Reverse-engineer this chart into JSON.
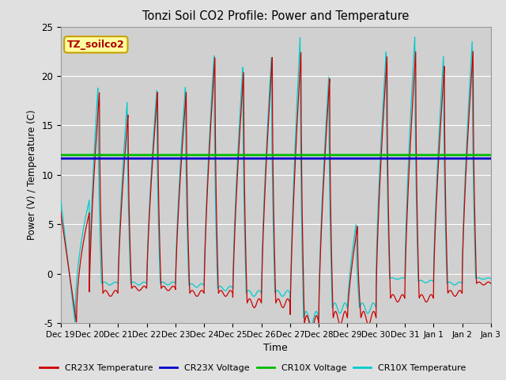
{
  "title": "Tonzi Soil CO2 Profile: Power and Temperature",
  "ylabel": "Power (V) / Temperature (C)",
  "xlabel": "Time",
  "ylim": [
    -5,
    25
  ],
  "num_days": 15,
  "cr23x_voltage_value": 11.65,
  "cr10x_voltage_value": 12.0,
  "fig_bg_color": "#e0e0e0",
  "plot_bg_color": "#d0d0d0",
  "annotation_text": "TZ_soilco2",
  "annotation_bg": "#ffffa0",
  "annotation_border": "#c8a000",
  "legend_labels": [
    "CR23X Temperature",
    "CR23X Voltage",
    "CR10X Voltage",
    "CR10X Temperature"
  ],
  "cr23x_temp_color": "#cc0000",
  "cr10x_temp_color": "#00cccc",
  "cr23x_volt_color": "#0000cc",
  "cr10x_volt_color": "#00bb00",
  "xtick_labels": [
    "Dec 19",
    "Dec 20",
    "Dec 21",
    "Dec 22",
    "Dec 23",
    "Dec 24",
    "Dec 25",
    "Dec 26",
    "Dec 27",
    "Dec 28",
    "Dec 29",
    "Dec 30",
    "Dec 31",
    "Jan 1",
    "Jan 2",
    "Jan 3"
  ],
  "yticks": [
    -5,
    0,
    5,
    10,
    15,
    20,
    25
  ],
  "grid_color": "#bbbbbb",
  "peak_heights_cr23x": [
    6.2,
    18.5,
    16.2,
    18.5,
    18.5,
    22.0,
    20.5,
    22.0,
    22.5,
    19.8,
    4.8,
    22.0,
    22.5,
    21.0,
    22.5
  ],
  "peak_heights_cr10x": [
    7.5,
    19.0,
    17.5,
    18.7,
    19.0,
    22.2,
    21.0,
    22.0,
    24.0,
    20.0,
    5.0,
    22.5,
    24.0,
    22.0,
    23.5
  ],
  "trough_cr23x": [
    -5.0,
    -2.0,
    -1.5,
    -1.5,
    -2.0,
    -2.0,
    -3.0,
    -3.0,
    -5.0,
    -4.5,
    -4.5,
    -2.5,
    -2.5,
    -2.0,
    -1.0
  ],
  "trough_cr10x": [
    -5.0,
    -1.0,
    -1.0,
    -1.0,
    -1.2,
    -1.5,
    -2.0,
    -2.0,
    -4.5,
    -3.5,
    -3.5,
    -0.5,
    -0.8,
    -1.0,
    -0.5
  ],
  "peak_phase_cr23x": [
    0.55,
    0.35,
    0.35,
    0.38,
    0.38,
    0.38,
    0.38,
    0.38,
    0.38,
    0.38,
    0.35,
    0.38,
    0.38,
    0.38,
    0.38
  ],
  "peak_phase_cr10x": [
    0.5,
    0.3,
    0.32,
    0.35,
    0.35,
    0.35,
    0.35,
    0.35,
    0.35,
    0.35,
    0.3,
    0.35,
    0.35,
    0.35,
    0.35
  ]
}
